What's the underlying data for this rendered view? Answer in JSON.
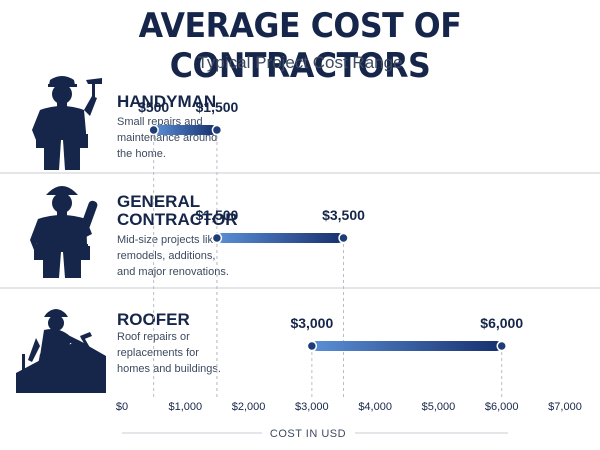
{
  "title": "AVERAGE COST OF CONTRACTORS",
  "subtitle": "Typical Project Cost Range",
  "colors": {
    "dark": "#16264a",
    "bar_start": "#5b8fd6",
    "bar_end": "#16306e",
    "dot": "#1f3c78",
    "separator": "#c9ced6",
    "guide": "#b8bec8"
  },
  "chart_data": {
    "type": "bar",
    "orientation": "horizontal-range",
    "title": "AVERAGE COST OF CONTRACTORS",
    "subtitle": "Typical Project Cost Range",
    "xlabel": "COST IN USD",
    "xlim": [
      0,
      7000
    ],
    "x_ticks": [
      "$0",
      "$1,000",
      "$2,000",
      "$3,000",
      "$4,000",
      "$5,000",
      "$6,000",
      "$7,000"
    ],
    "grid": false,
    "series": [
      {
        "category": "HANDYMAN",
        "title_lines": [
          "HANDYMAN"
        ],
        "description_lines": [
          "Small repairs and",
          "maintenance around",
          "the home."
        ],
        "icon": "handyman-with-hammer-icon",
        "low": 500,
        "high": 1500,
        "low_label": "$500",
        "high_label": "$1,500"
      },
      {
        "category": "GENERAL CONTRACTOR",
        "title_lines": [
          "GENERAL",
          "CONTRACTOR"
        ],
        "description_lines": [
          "Mid-size projects like",
          "remodels, additions,",
          "and major renovations."
        ],
        "icon": "contractor-with-blueprints-icon",
        "low": 1500,
        "high": 3500,
        "low_label": "$1,500",
        "high_label": "$3,500"
      },
      {
        "category": "ROOFER",
        "title_lines": [
          "ROOFER"
        ],
        "description_lines": [
          "Roof repairs or",
          "replacements for",
          "homes and buildings."
        ],
        "icon": "roofer-on-roof-icon",
        "low": 3000,
        "high": 6000,
        "low_label": "$3,000",
        "high_label": "$6,000"
      }
    ]
  }
}
